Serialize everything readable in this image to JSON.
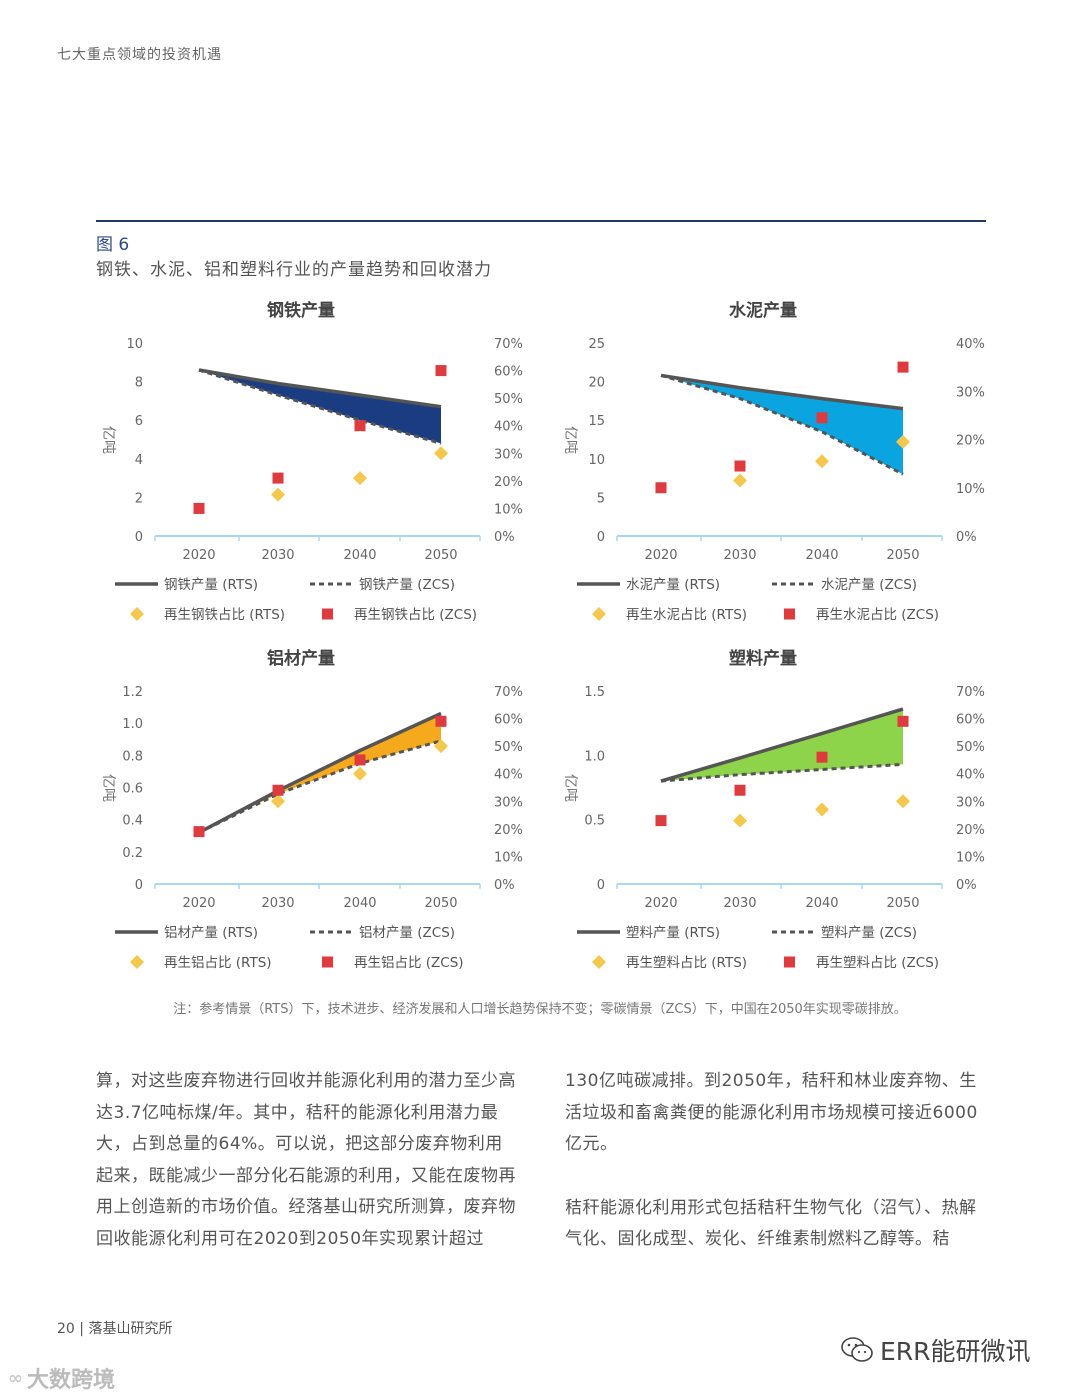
{
  "header": "七大重点领域的投资机遇",
  "figure": {
    "label": "图 6",
    "title": "钢铁、水泥、铝和塑料行业的产量趋势和回收潜力",
    "note": "注：参考情景（RTS）下，技术进步、经济发展和人口增长趋势保持不变；零碳情景（ZCS）下，中国在2050年实现零碳排放。"
  },
  "chart_data": [
    {
      "type": "area",
      "title": "钢铁产量",
      "ylabel": "亿吨",
      "x": [
        "2020",
        "2030",
        "2040",
        "2050"
      ],
      "ylim": [
        0,
        10
      ],
      "yticks": [
        "0",
        "2",
        "4",
        "6",
        "8",
        "10"
      ],
      "y2lim": [
        0,
        70
      ],
      "y2ticks": [
        "0%",
        "10%",
        "20%",
        "30%",
        "40%",
        "50%",
        "60%",
        "70%"
      ],
      "fill": "#1a3d82",
      "series": [
        {
          "name": "钢铁产量 (RTS)",
          "kind": "line",
          "values": [
            8.6,
            7.9,
            7.3,
            6.7
          ]
        },
        {
          "name": "钢铁产量 (ZCS)",
          "kind": "dashed",
          "values": [
            8.6,
            7.3,
            6.0,
            4.8
          ]
        },
        {
          "name": "再生钢铁占比 (RTS)",
          "kind": "diamond",
          "axis": "y2",
          "values": [
            null,
            15,
            21,
            30
          ]
        },
        {
          "name": "再生钢铁占比 (ZCS)",
          "kind": "square",
          "axis": "y2",
          "values": [
            10,
            21,
            40,
            60
          ]
        }
      ]
    },
    {
      "type": "area",
      "title": "水泥产量",
      "ylabel": "亿吨",
      "x": [
        "2020",
        "2030",
        "2040",
        "2050"
      ],
      "ylim": [
        0,
        25
      ],
      "yticks": [
        "0",
        "5",
        "10",
        "15",
        "20",
        "25"
      ],
      "y2lim": [
        0,
        40
      ],
      "y2ticks": [
        "0%",
        "10%",
        "20%",
        "30%",
        "40%"
      ],
      "fill": "#0aa5e0",
      "series": [
        {
          "name": "水泥产量 (RTS)",
          "kind": "line",
          "values": [
            20.8,
            19.2,
            17.8,
            16.5
          ]
        },
        {
          "name": "水泥产量 (ZCS)",
          "kind": "dashed",
          "values": [
            20.8,
            17.8,
            13.5,
            8.0
          ]
        },
        {
          "name": "再生水泥占比 (RTS)",
          "kind": "diamond",
          "axis": "y2",
          "values": [
            null,
            11.5,
            15.5,
            19.5
          ]
        },
        {
          "name": "再生水泥占比 (ZCS)",
          "kind": "square",
          "axis": "y2",
          "values": [
            10,
            14.5,
            24.5,
            35
          ]
        }
      ]
    },
    {
      "type": "area",
      "title": "铝材产量",
      "ylabel": "亿吨",
      "x": [
        "2020",
        "2030",
        "2040",
        "2050"
      ],
      "ylim": [
        0,
        1.2
      ],
      "yticks": [
        "0",
        "0.2",
        "0.4",
        "0.6",
        "0.8",
        "1.0",
        "1.2"
      ],
      "y2lim": [
        0,
        70
      ],
      "y2ticks": [
        "0%",
        "10%",
        "20%",
        "30%",
        "40%",
        "50%",
        "60%",
        "70%"
      ],
      "fill": "#f5aa1e",
      "series": [
        {
          "name": "铝材产量 (RTS)",
          "kind": "line",
          "values": [
            0.32,
            0.58,
            0.83,
            1.06
          ]
        },
        {
          "name": "铝材产量 (ZCS)",
          "kind": "dashed",
          "values": [
            0.32,
            0.56,
            0.75,
            0.89
          ]
        },
        {
          "name": "再生铝占比 (RTS)",
          "kind": "diamond",
          "axis": "y2",
          "values": [
            null,
            30,
            40,
            50
          ]
        },
        {
          "name": "再生铝占比 (ZCS)",
          "kind": "square",
          "axis": "y2",
          "values": [
            19,
            34,
            45,
            59
          ]
        }
      ]
    },
    {
      "type": "area",
      "title": "塑料产量",
      "ylabel": "亿吨",
      "x": [
        "2020",
        "2030",
        "2040",
        "2050"
      ],
      "ylim": [
        0,
        1.5
      ],
      "yticks": [
        "0",
        "0.5",
        "1.0",
        "1.5"
      ],
      "y2lim": [
        0,
        70
      ],
      "y2ticks": [
        "0%",
        "10%",
        "20%",
        "30%",
        "40%",
        "50%",
        "60%",
        "70%"
      ],
      "fill": "#8ed44a",
      "series": [
        {
          "name": "塑料产量 (RTS)",
          "kind": "line",
          "values": [
            0.8,
            0.98,
            1.17,
            1.36
          ]
        },
        {
          "name": "塑料产量 (ZCS)",
          "kind": "dashed",
          "values": [
            0.8,
            0.85,
            0.89,
            0.93
          ]
        },
        {
          "name": "再生塑料占比 (RTS)",
          "kind": "diamond",
          "axis": "y2",
          "values": [
            null,
            23,
            27,
            30
          ]
        },
        {
          "name": "再生塑料占比 (ZCS)",
          "kind": "square",
          "axis": "y2",
          "values": [
            23,
            34,
            46,
            59
          ]
        }
      ]
    }
  ],
  "body": {
    "left": "算，对这些废弃物进行回收并能源化利用的潜力至少高达3.7亿吨标煤/年。其中，秸秆的能源化利用潜力最大，占到总量的64%。可以说，把这部分废弃物利用起来，既能减少一部分化石能源的利用，又能在废物再用上创造新的市场价值。经落基山研究所测算，废弃物回收能源化利用可在2020到2050年实现累计超过",
    "right_p1": "130亿吨碳减排。到2050年，秸秆和林业废弃物、生活垃圾和畜禽粪便的能源化利用市场规模可接近6000亿元。",
    "right_p2": "秸秆能源化利用形式包括秸秆生物气化（沼气）、热解气化、固化成型、炭化、纤维素制燃料乙醇等。秸"
  },
  "footer": {
    "page": "20",
    "org": "落基山研究所"
  },
  "brand": {
    "wechat": "ERR能研微讯",
    "watermark": "大数跨境"
  },
  "colors": {
    "rts_line": "#555555",
    "diamond": "#f5c84c",
    "square": "#e03a3e",
    "axis": "#a8d8ee",
    "accent": "#2a4a8a"
  }
}
